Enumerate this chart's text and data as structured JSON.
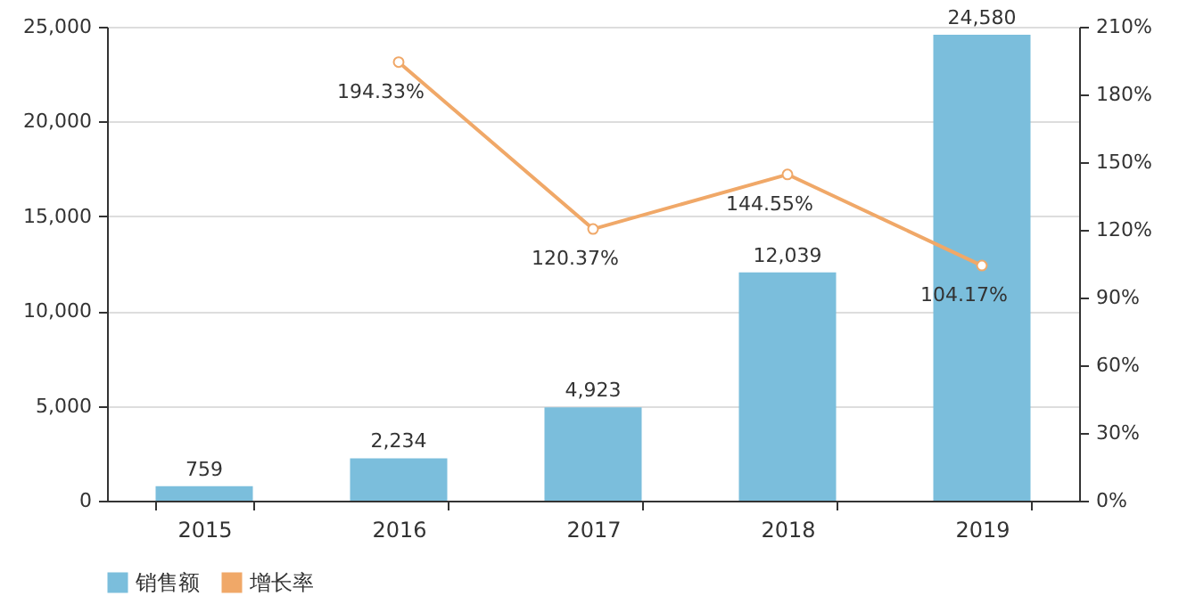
{
  "chart_data": {
    "type": "bar",
    "categories": [
      "2015",
      "2016",
      "2017",
      "2018",
      "2019"
    ],
    "series": [
      {
        "name": "销售额",
        "color": "#7bbedc",
        "values": [
          759,
          2234,
          4923,
          12039,
          24580
        ],
        "value_labels": [
          "759",
          "2,234",
          "4,923",
          "12,039",
          "24,580"
        ]
      },
      {
        "name": "增长率",
        "type": "line",
        "axis": "y2",
        "color": "#f0a868",
        "marker": "circle",
        "values": [
          null,
          194.33,
          120.37,
          144.55,
          104.17
        ],
        "value_labels": [
          null,
          "194.33%",
          "120.37%",
          "144.55%",
          "104.17%"
        ]
      }
    ],
    "ylim": [
      0,
      25000
    ],
    "yticks": [
      {
        "value": 0,
        "label": "0"
      },
      {
        "value": 5000,
        "label": "5,000"
      },
      {
        "value": 10000,
        "label": "10,000"
      },
      {
        "value": 15000,
        "label": "15,000"
      },
      {
        "value": 20000,
        "label": "20,000"
      },
      {
        "value": 25000,
        "label": "25,000"
      }
    ],
    "y2lim": [
      0,
      210
    ],
    "y2ticks": [
      {
        "value": 0,
        "label": "0%"
      },
      {
        "value": 30,
        "label": "30%"
      },
      {
        "value": 60,
        "label": "60%"
      },
      {
        "value": 90,
        "label": "90%"
      },
      {
        "value": 120,
        "label": "120%"
      },
      {
        "value": 150,
        "label": "150%"
      },
      {
        "value": 180,
        "label": "180%"
      },
      {
        "value": 210,
        "label": "210%"
      }
    ],
    "grid": "y",
    "legend": "bottom"
  }
}
